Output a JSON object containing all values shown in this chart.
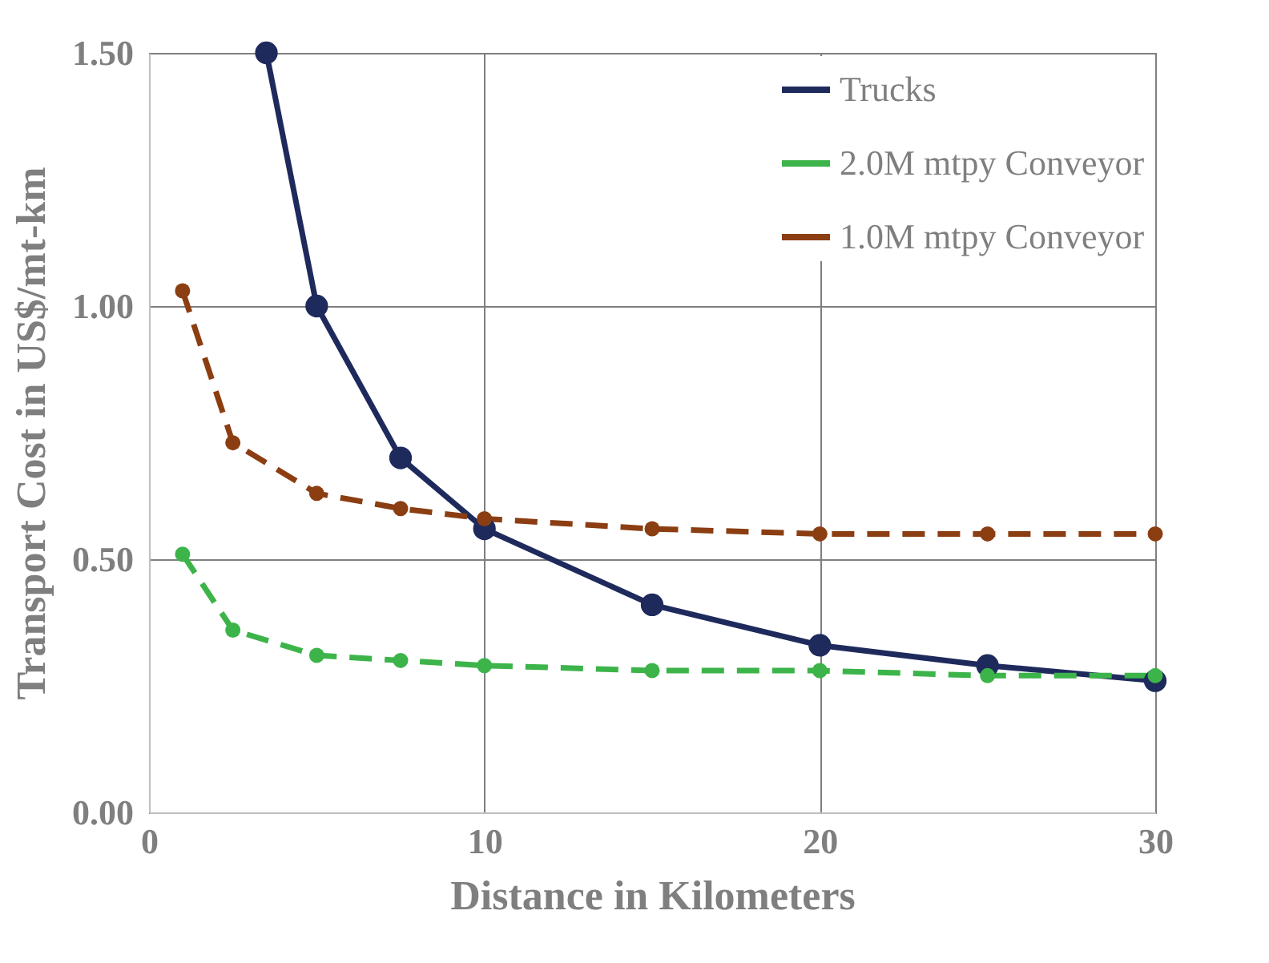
{
  "chart_data": {
    "type": "line",
    "xlabel": "Distance in Kilometers",
    "ylabel": "Transport Cost in US$/mt-km",
    "xlim": [
      0,
      30
    ],
    "xticks": [
      0,
      10,
      20,
      30
    ],
    "ylim": [
      0,
      1.5
    ],
    "yticks": [
      {
        "value": 0,
        "label": "0.00"
      },
      {
        "value": 0.5,
        "label": "0.50"
      },
      {
        "value": 1,
        "label": "1.00"
      },
      {
        "value": 1.5,
        "label": "1.50"
      }
    ],
    "grid": true,
    "legend": "top right",
    "marker": "circle",
    "series": [
      {
        "name": "Trucks",
        "color": "#1f2a5c",
        "line_style": "solid",
        "x": [
          3.5,
          5,
          7.5,
          10,
          15,
          20,
          25,
          30
        ],
        "values": [
          1.5,
          1.0,
          0.7,
          0.56,
          0.41,
          0.33,
          0.29,
          0.26
        ]
      },
      {
        "name": "2.0M mtpy Conveyor",
        "color": "#3cb44a",
        "line_style": "dashed",
        "x": [
          1,
          2.5,
          5,
          7.5,
          10,
          15,
          20,
          25,
          30
        ],
        "values": [
          0.51,
          0.36,
          0.31,
          0.3,
          0.29,
          0.28,
          0.28,
          0.27,
          0.27
        ]
      },
      {
        "name": "1.0M mtpy Conveyor",
        "color": "#8b3e12",
        "line_style": "dashed",
        "x": [
          1,
          2.5,
          5,
          7.5,
          10,
          15,
          20,
          25,
          30
        ],
        "values": [
          1.03,
          0.73,
          0.63,
          0.6,
          0.58,
          0.56,
          0.55,
          0.55,
          0.55
        ]
      }
    ]
  }
}
